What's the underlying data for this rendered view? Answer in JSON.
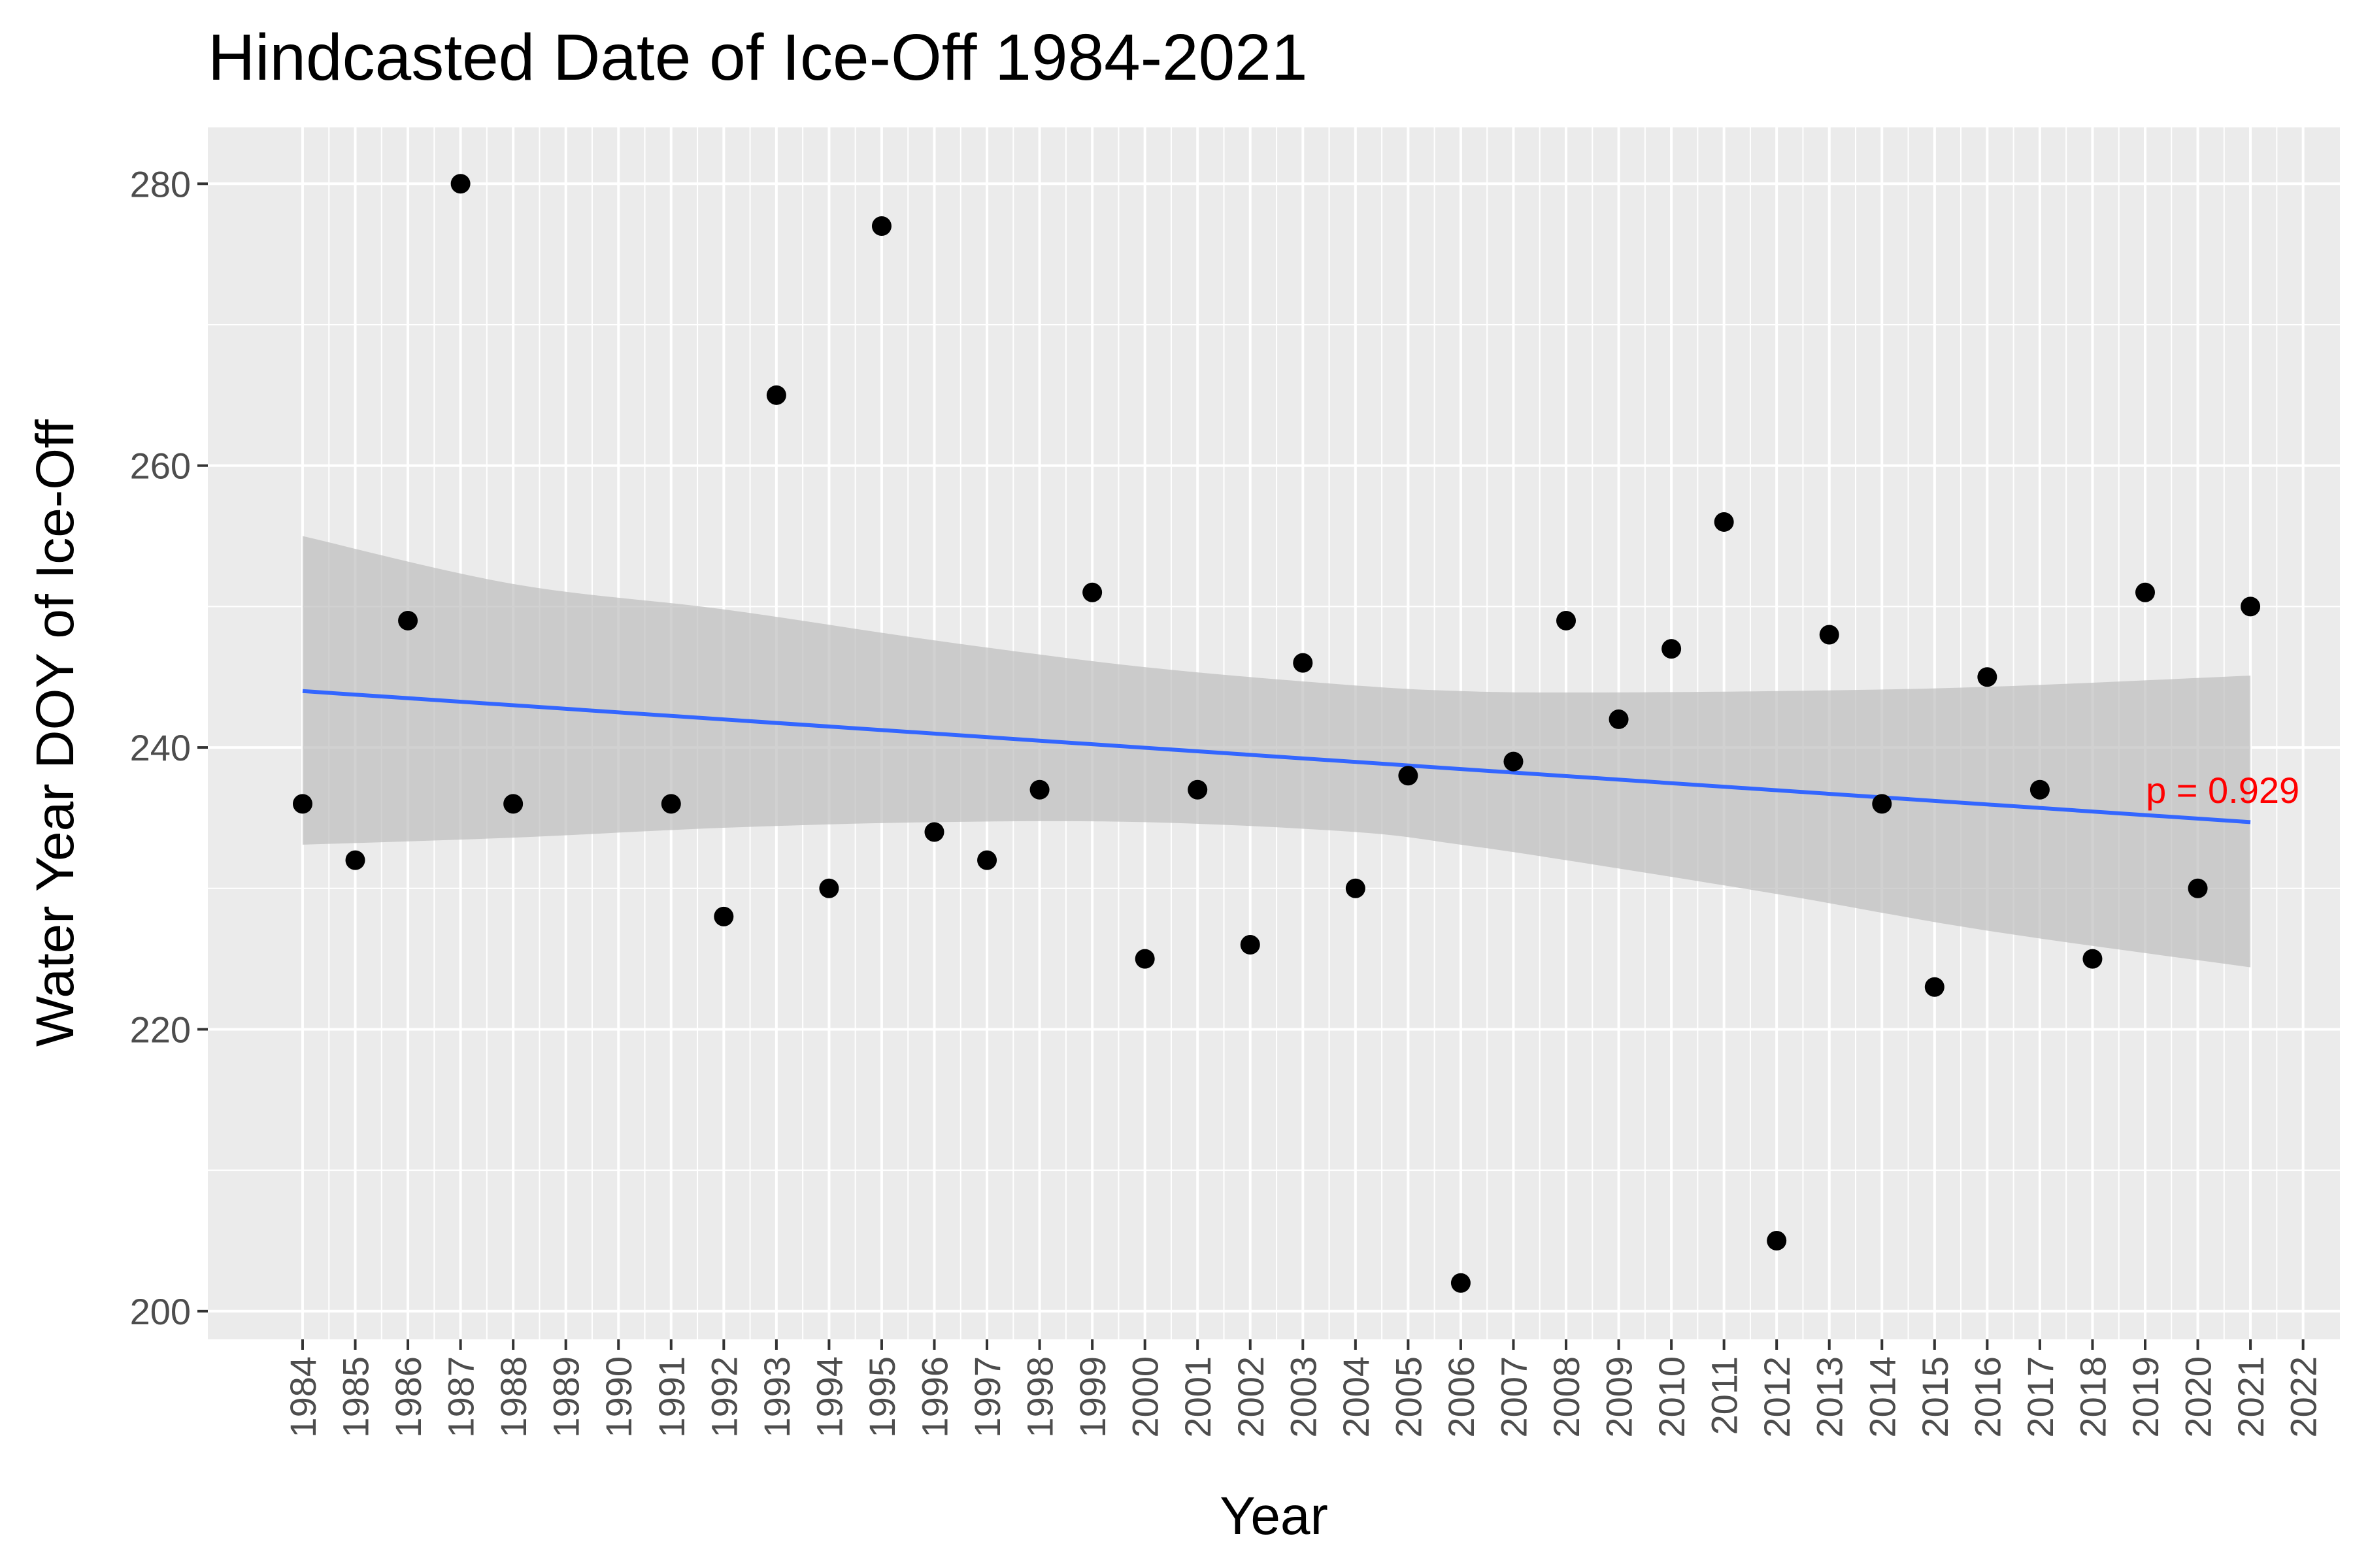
{
  "chart_data": {
    "type": "scatter",
    "title": "Hindcasted Date of Ice-Off 1984-2021",
    "xlabel": "Year",
    "ylabel": "Water Year DOY of Ice-Off",
    "x_tick_labels": [
      "1984",
      "1985",
      "1986",
      "1987",
      "1988",
      "1989",
      "1990",
      "1991",
      "1992",
      "1993",
      "1994",
      "1995",
      "1996",
      "1997",
      "1998",
      "1999",
      "2000",
      "2001",
      "2002",
      "2003",
      "2004",
      "2005",
      "2006",
      "2007",
      "2008",
      "2009",
      "2010",
      "2011",
      "2012",
      "2013",
      "2014",
      "2015",
      "2016",
      "2017",
      "2018",
      "2019",
      "2020",
      "2021",
      "2022"
    ],
    "y_ticks": [
      200,
      220,
      240,
      260,
      280
    ],
    "ylim": [
      198,
      284
    ],
    "xlim": [
      1982.2,
      2022.7
    ],
    "grid": true,
    "points": [
      {
        "x": 1984,
        "y": 236
      },
      {
        "x": 1985,
        "y": 232
      },
      {
        "x": 1986,
        "y": 249
      },
      {
        "x": 1987,
        "y": 280
      },
      {
        "x": 1988,
        "y": 236
      },
      {
        "x": 1991,
        "y": 236
      },
      {
        "x": 1992,
        "y": 228
      },
      {
        "x": 1993,
        "y": 265
      },
      {
        "x": 1994,
        "y": 230
      },
      {
        "x": 1995,
        "y": 277
      },
      {
        "x": 1996,
        "y": 234
      },
      {
        "x": 1997,
        "y": 232
      },
      {
        "x": 1998,
        "y": 237
      },
      {
        "x": 1999,
        "y": 251
      },
      {
        "x": 2000,
        "y": 225
      },
      {
        "x": 2001,
        "y": 237
      },
      {
        "x": 2002,
        "y": 226
      },
      {
        "x": 2003,
        "y": 246
      },
      {
        "x": 2004,
        "y": 230
      },
      {
        "x": 2005,
        "y": 238
      },
      {
        "x": 2006,
        "y": 202
      },
      {
        "x": 2007,
        "y": 239
      },
      {
        "x": 2008,
        "y": 249
      },
      {
        "x": 2009,
        "y": 242
      },
      {
        "x": 2010,
        "y": 247
      },
      {
        "x": 2011,
        "y": 256
      },
      {
        "x": 2012,
        "y": 205
      },
      {
        "x": 2013,
        "y": 248
      },
      {
        "x": 2014,
        "y": 236
      },
      {
        "x": 2015,
        "y": 223
      },
      {
        "x": 2016,
        "y": 245
      },
      {
        "x": 2017,
        "y": 237
      },
      {
        "x": 2018,
        "y": 225
      },
      {
        "x": 2019,
        "y": 251
      },
      {
        "x": 2020,
        "y": 230
      },
      {
        "x": 2021,
        "y": 250
      }
    ],
    "trend_line": {
      "x": [
        1984,
        2021
      ],
      "y": [
        244.0,
        234.7
      ],
      "color": "#3366ff"
    },
    "confidence_band": {
      "x": [
        1984,
        1988,
        1992,
        1996,
        2000,
        2004,
        2006,
        2008,
        2012,
        2016,
        2021
      ],
      "upper": [
        255.0,
        251.6,
        249.8,
        247.6,
        245.7,
        244.4,
        244.0,
        243.9,
        244.0,
        244.3,
        245.1
      ],
      "lower": [
        233.1,
        233.6,
        234.3,
        234.7,
        234.7,
        234.0,
        233.1,
        232.0,
        229.6,
        227.0,
        224.4
      ],
      "color": "#bdbdbd"
    },
    "annotation": {
      "text": "p = 0.929",
      "x": 2021,
      "y": 237,
      "color": "#ff0000"
    },
    "colors": {
      "panel": "#ebebeb",
      "grid": "#ffffff",
      "point": "#000000"
    }
  }
}
